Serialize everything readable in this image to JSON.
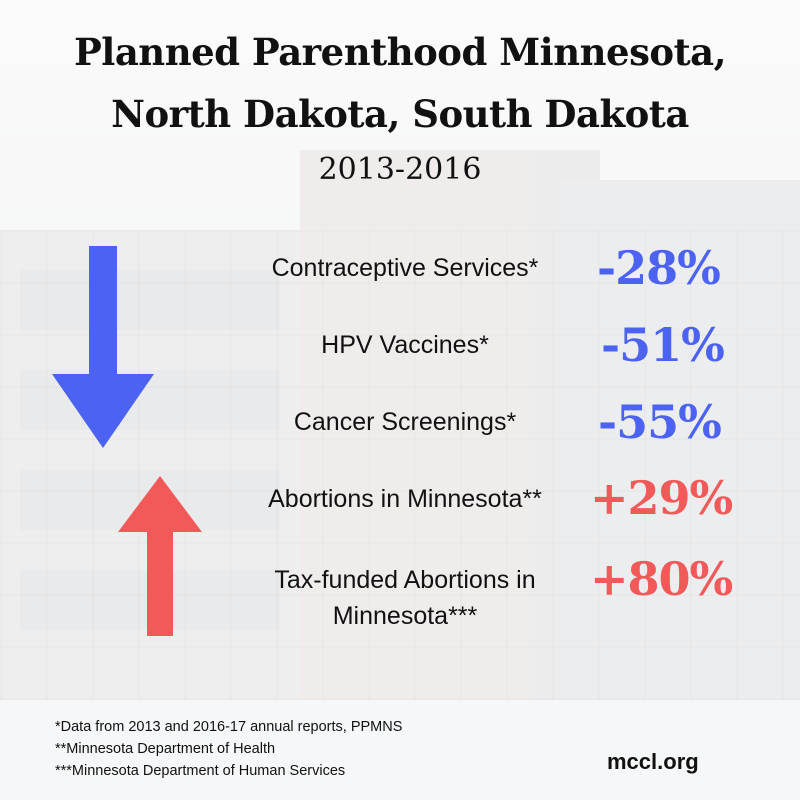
{
  "header": {
    "title_line1": "Planned Parenthood Minnesota,",
    "title_line2": "North Dakota, South Dakota",
    "years": "2013-2016"
  },
  "stats": [
    {
      "label": "Contraceptive Services*",
      "value": "-28%"
    },
    {
      "label": "HPV Vaccines*",
      "value": "-51%"
    },
    {
      "label": "Cancer Screenings*",
      "value": "-55%"
    },
    {
      "label": "Abortions in Minnesota**",
      "value": "+29%"
    },
    {
      "label_line1": "Tax-funded Abortions in",
      "label_line2": "Minnesota***",
      "value": "+80%"
    }
  ],
  "footnotes": [
    "*Data from 2013 and 2016-17 annual reports, PPMNS",
    "**Minnesota Department of Health",
    "***Minnesota Department of Human Services"
  ],
  "site": "mccl.org",
  "colors": {
    "decrease": "#4b62f2",
    "increase": "#f25a5a"
  },
  "icons": {
    "decrease": "arrow-down-icon",
    "increase": "arrow-up-icon"
  }
}
